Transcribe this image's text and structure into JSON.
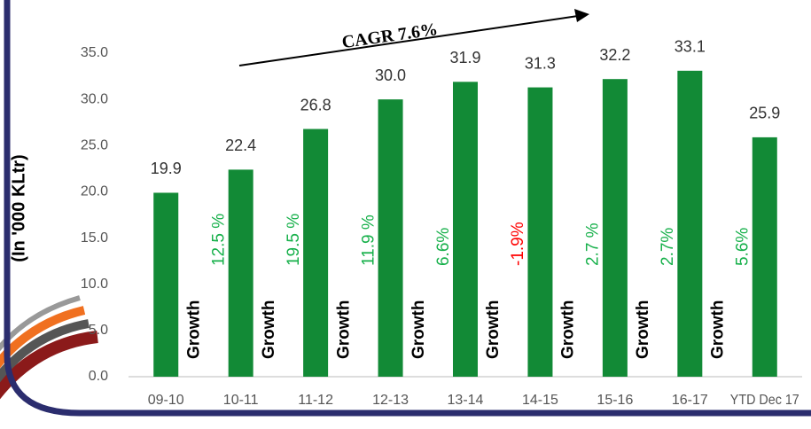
{
  "chart_data": {
    "type": "bar",
    "y_label": "(In '000 KLtr)",
    "categories": [
      "09-10",
      "10-11",
      "11-12",
      "12-13",
      "13-14",
      "14-15",
      "15-16",
      "16-17",
      "YTD Dec 17"
    ],
    "values": [
      19.9,
      22.4,
      26.8,
      30.0,
      31.9,
      31.3,
      32.2,
      33.1,
      25.9
    ],
    "value_labels": [
      "19.9",
      "22.4",
      "26.8",
      "30.0",
      "31.9",
      "31.3",
      "32.2",
      "33.1",
      "25.9"
    ],
    "color": "#128a36",
    "ylim": [
      0,
      35
    ],
    "yticks": [
      {
        "value": 0,
        "label": "0.0"
      },
      {
        "value": 5,
        "label": "5.0"
      },
      {
        "value": 10,
        "label": "10.0"
      },
      {
        "value": 15,
        "label": "15.0"
      },
      {
        "value": 20,
        "label": "20.0"
      },
      {
        "value": 25,
        "label": "25.0"
      },
      {
        "value": 30,
        "label": "30.0"
      },
      {
        "value": 35,
        "label": "35.0"
      }
    ],
    "growth": {
      "label": "Growth",
      "values": [
        "12.5 %",
        "19.5 %",
        "11.9 %",
        "6.6%",
        "-1.9%",
        "2.7 %",
        "2.7%",
        "5.6%"
      ],
      "colors": [
        "#16b04a",
        "#16b04a",
        "#16b04a",
        "#16b04a",
        "#ff0000",
        "#16b04a",
        "#16b04a",
        "#16b04a"
      ]
    },
    "annotation": "CAGR 7.6%"
  }
}
